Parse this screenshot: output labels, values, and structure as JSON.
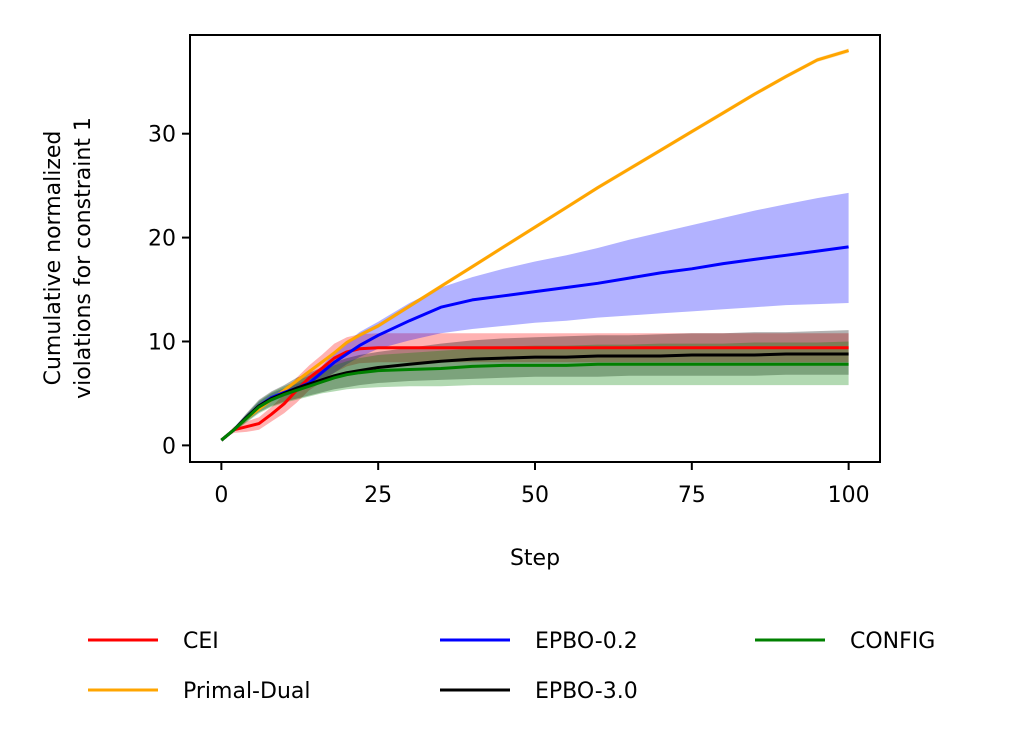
{
  "chart_data": {
    "type": "line",
    "title": "",
    "xlabel": "Step",
    "ylabel_lines": [
      "Cumulative normalized",
      "violations for constraint 1"
    ],
    "xlim": [
      -5,
      105
    ],
    "ylim": [
      -1.6,
      39.5
    ],
    "xticks": [
      0,
      25,
      50,
      75,
      100
    ],
    "yticks": [
      0,
      10,
      20,
      30
    ],
    "grid": false,
    "legend_position": "below",
    "x": [
      0,
      2,
      4,
      6,
      8,
      10,
      12,
      14,
      16,
      18,
      20,
      22,
      25,
      30,
      35,
      40,
      45,
      50,
      55,
      60,
      65,
      70,
      75,
      80,
      85,
      90,
      95,
      100
    ],
    "series": [
      {
        "name": "CEI",
        "color": "#ff0000",
        "values": [
          0.5,
          1.5,
          1.8,
          2.1,
          3.0,
          4.0,
          5.3,
          6.5,
          7.4,
          8.4,
          9.0,
          9.3,
          9.4,
          9.4,
          9.4,
          9.4,
          9.4,
          9.4,
          9.4,
          9.4,
          9.4,
          9.4,
          9.4,
          9.4,
          9.4,
          9.4,
          9.4,
          9.4
        ],
        "lower": [
          0.5,
          1.2,
          1.3,
          1.5,
          2.3,
          3.1,
          4.1,
          5.3,
          6.1,
          7.0,
          7.6,
          7.9,
          8.0,
          8.0,
          8.0,
          8.0,
          8.0,
          8.0,
          8.0,
          8.0,
          8.0,
          8.0,
          8.0,
          8.0,
          8.0,
          8.0,
          8.0,
          8.0
        ],
        "upper": [
          0.5,
          1.8,
          2.3,
          2.7,
          3.7,
          4.9,
          6.5,
          7.7,
          8.7,
          9.8,
          10.4,
          10.7,
          10.8,
          10.8,
          10.8,
          10.8,
          10.8,
          10.8,
          10.8,
          10.8,
          10.8,
          10.8,
          10.8,
          10.8,
          10.8,
          10.8,
          10.8,
          10.8
        ]
      },
      {
        "name": "Primal-Dual",
        "color": "#ffa500",
        "values": [
          0.5,
          1.5,
          2.6,
          3.5,
          4.4,
          5.3,
          6.2,
          7.1,
          8.0,
          8.9,
          9.9,
          10.6,
          11.5,
          13.4,
          15.3,
          17.2,
          19.1,
          21.0,
          22.9,
          24.8,
          26.6,
          28.4,
          30.2,
          32.0,
          33.8,
          35.5,
          37.1,
          38.0
        ],
        "lower": [
          0.5,
          1.4,
          2.5,
          3.4,
          4.3,
          5.1,
          6.0,
          6.9,
          7.8,
          8.7,
          9.7,
          10.4,
          11.3,
          13.2,
          15.1,
          17.0,
          18.9,
          20.8,
          22.7,
          24.6,
          26.4,
          28.2,
          30.0,
          31.8,
          33.6,
          35.3,
          36.9,
          37.8
        ],
        "upper": [
          0.5,
          1.6,
          2.7,
          3.6,
          4.5,
          5.5,
          6.4,
          7.3,
          8.2,
          9.1,
          10.1,
          10.8,
          11.7,
          13.6,
          15.5,
          17.4,
          19.3,
          21.2,
          23.1,
          25.0,
          26.8,
          28.6,
          30.4,
          32.2,
          34.0,
          35.7,
          37.3,
          38.2
        ]
      },
      {
        "name": "EPBO-0.2",
        "color": "#0000ff",
        "values": [
          0.5,
          1.5,
          2.7,
          3.8,
          4.6,
          5.1,
          5.5,
          6.0,
          7.0,
          8.0,
          8.8,
          9.6,
          10.6,
          12.0,
          13.3,
          14.0,
          14.4,
          14.8,
          15.2,
          15.6,
          16.1,
          16.6,
          17.0,
          17.5,
          17.9,
          18.3,
          18.7,
          19.1
        ],
        "lower": [
          0.5,
          1.3,
          2.4,
          3.4,
          4.2,
          4.7,
          5.1,
          5.6,
          6.3,
          7.0,
          7.8,
          8.5,
          9.3,
          10.1,
          10.8,
          11.2,
          11.5,
          11.8,
          12.0,
          12.3,
          12.5,
          12.7,
          12.9,
          13.1,
          13.3,
          13.5,
          13.6,
          13.7
        ],
        "upper": [
          0.5,
          1.7,
          3.0,
          4.2,
          5.0,
          5.5,
          5.9,
          6.4,
          7.6,
          8.9,
          9.9,
          10.9,
          11.9,
          13.7,
          15.2,
          16.2,
          17.0,
          17.7,
          18.3,
          19.0,
          19.8,
          20.5,
          21.2,
          21.9,
          22.6,
          23.2,
          23.8,
          24.3
        ]
      },
      {
        "name": "EPBO-3.0",
        "color": "#000000",
        "values": [
          0.5,
          1.5,
          2.7,
          3.8,
          4.5,
          5.0,
          5.5,
          5.9,
          6.3,
          6.7,
          7.0,
          7.2,
          7.5,
          7.8,
          8.1,
          8.3,
          8.4,
          8.5,
          8.5,
          8.6,
          8.6,
          8.6,
          8.7,
          8.7,
          8.7,
          8.8,
          8.8,
          8.8
        ],
        "lower": [
          0.5,
          1.3,
          2.3,
          3.2,
          3.8,
          4.2,
          4.5,
          4.8,
          5.1,
          5.4,
          5.6,
          5.8,
          6.0,
          6.2,
          6.3,
          6.4,
          6.5,
          6.6,
          6.6,
          6.6,
          6.7,
          6.7,
          6.7,
          6.7,
          6.7,
          6.8,
          6.8,
          6.8
        ],
        "upper": [
          0.5,
          1.7,
          3.1,
          4.4,
          5.2,
          5.8,
          6.5,
          7.0,
          7.5,
          8.0,
          8.4,
          8.7,
          9.0,
          9.4,
          9.8,
          10.1,
          10.3,
          10.4,
          10.5,
          10.6,
          10.6,
          10.7,
          10.8,
          10.8,
          10.9,
          10.9,
          11.0,
          11.1
        ]
      },
      {
        "name": "CONFIG",
        "color": "#008000",
        "values": [
          0.5,
          1.5,
          2.6,
          3.7,
          4.4,
          4.9,
          5.3,
          5.7,
          6.1,
          6.5,
          6.8,
          7.0,
          7.2,
          7.3,
          7.4,
          7.6,
          7.7,
          7.7,
          7.7,
          7.8,
          7.8,
          7.8,
          7.8,
          7.8,
          7.8,
          7.8,
          7.8,
          7.8
        ],
        "lower": [
          0.5,
          1.3,
          2.2,
          3.1,
          3.7,
          4.1,
          4.4,
          4.7,
          5.0,
          5.2,
          5.4,
          5.5,
          5.6,
          5.7,
          5.7,
          5.8,
          5.8,
          5.8,
          5.8,
          5.8,
          5.8,
          5.8,
          5.8,
          5.8,
          5.8,
          5.8,
          5.8,
          5.8
        ],
        "upper": [
          0.5,
          1.7,
          3.0,
          4.3,
          5.1,
          5.7,
          6.2,
          6.7,
          7.2,
          7.7,
          8.1,
          8.4,
          8.7,
          8.9,
          9.1,
          9.3,
          9.5,
          9.6,
          9.6,
          9.7,
          9.7,
          9.8,
          9.8,
          9.8,
          9.9,
          9.9,
          9.9,
          10.0
        ]
      }
    ]
  }
}
